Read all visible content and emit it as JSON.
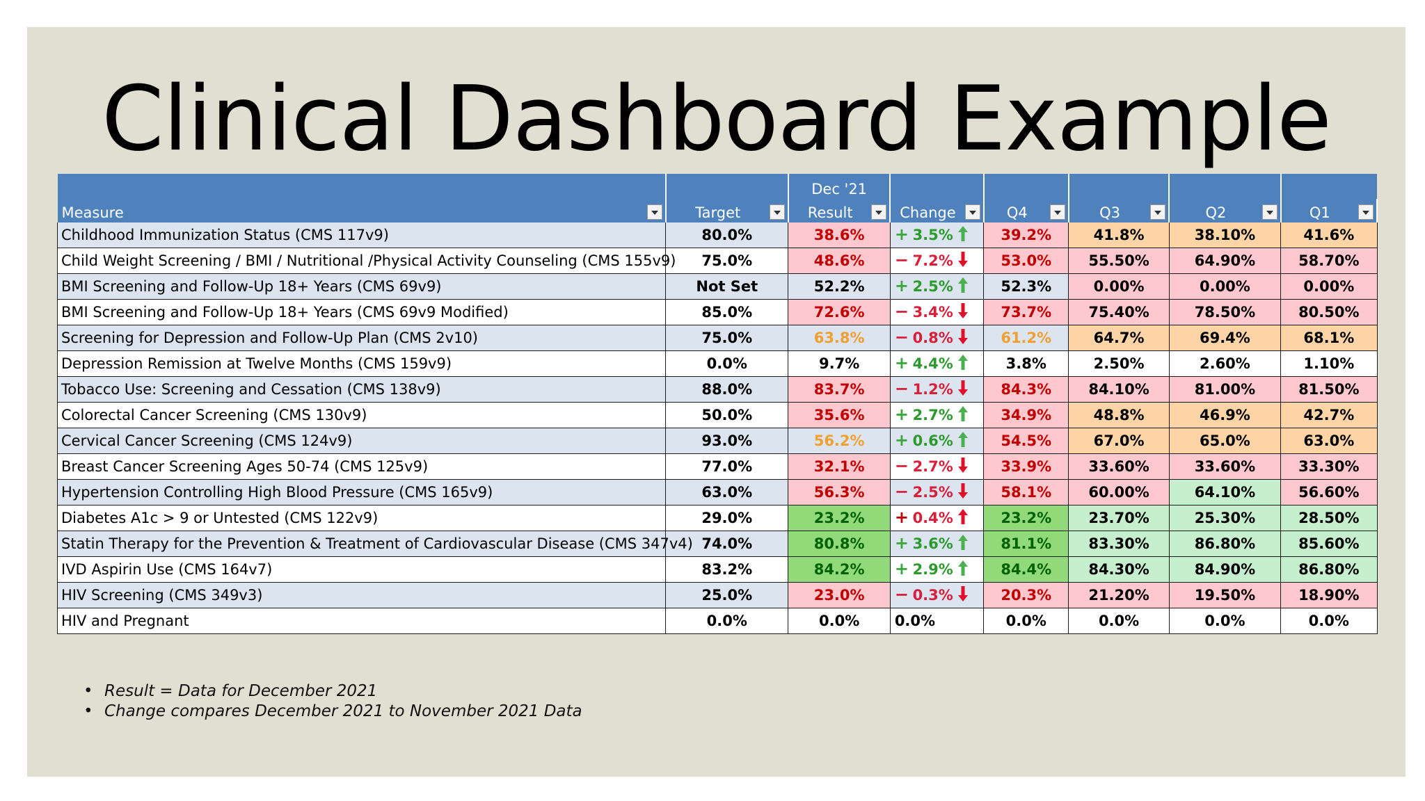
{
  "title": "Clinical Dashboard Example",
  "header": {
    "top_label": "Dec '21",
    "columns": [
      "Measure",
      "Target",
      "Result",
      "Change",
      "Q4",
      "Q3",
      "Q2",
      "Q1"
    ]
  },
  "rows": [
    {
      "measure": "Childhood Immunization Status (CMS 117v9)",
      "target": "80.0%",
      "result": "38.6%",
      "sign": "+",
      "change": "3.5%",
      "dir": "up",
      "q4": "39.2%",
      "q3": "41.8%",
      "q2": "38.10%",
      "q1": "41.6%"
    },
    {
      "measure": "Child Weight Screening / BMI / Nutritional /Physical Activity Counseling (CMS 155v9)",
      "target": "75.0%",
      "result": "48.6%",
      "sign": "−",
      "change": "7.2%",
      "dir": "down",
      "q4": "53.0%",
      "q3": "55.50%",
      "q2": "64.90%",
      "q1": "58.70%"
    },
    {
      "measure": "BMI Screening and Follow-Up 18+ Years (CMS 69v9)",
      "target": "Not Set",
      "result": "52.2%",
      "sign": "+",
      "change": "2.5%",
      "dir": "up",
      "q4": "52.3%",
      "q3": "0.00%",
      "q2": "0.00%",
      "q1": "0.00%"
    },
    {
      "measure": "BMI Screening and Follow-Up 18+ Years (CMS 69v9 Modified)",
      "target": "85.0%",
      "result": "72.6%",
      "sign": "−",
      "change": "3.4%",
      "dir": "down",
      "q4": "73.7%",
      "q3": "75.40%",
      "q2": "78.50%",
      "q1": "80.50%"
    },
    {
      "measure": "Screening for Depression and Follow-Up Plan (CMS 2v10)",
      "target": "75.0%",
      "result": "63.8%",
      "sign": "−",
      "change": "0.8%",
      "dir": "down",
      "q4": "61.2%",
      "q3": "64.7%",
      "q2": "69.4%",
      "q1": "68.1%"
    },
    {
      "measure": "Depression Remission at Twelve Months (CMS 159v9)",
      "target": "0.0%",
      "result": "9.7%",
      "sign": "+",
      "change": "4.4%",
      "dir": "up",
      "q4": "3.8%",
      "q3": "2.50%",
      "q2": "2.60%",
      "q1": "1.10%"
    },
    {
      "measure": "Tobacco Use: Screening and Cessation (CMS 138v9)",
      "target": "88.0%",
      "result": "83.7%",
      "sign": "−",
      "change": "1.2%",
      "dir": "down",
      "q4": "84.3%",
      "q3": "84.10%",
      "q2": "81.00%",
      "q1": "81.50%"
    },
    {
      "measure": "Colorectal Cancer Screening (CMS 130v9)",
      "target": "50.0%",
      "result": "35.6%",
      "sign": "+",
      "change": "2.7%",
      "dir": "up",
      "q4": "34.9%",
      "q3": "48.8%",
      "q2": "46.9%",
      "q1": "42.7%"
    },
    {
      "measure": "Cervical Cancer Screening (CMS 124v9)",
      "target": "93.0%",
      "result": "56.2%",
      "sign": "+",
      "change": "0.6%",
      "dir": "up",
      "q4": "54.5%",
      "q3": "67.0%",
      "q2": "65.0%",
      "q1": "63.0%"
    },
    {
      "measure": "Breast Cancer Screening Ages 50-74 (CMS 125v9)",
      "target": "77.0%",
      "result": "32.1%",
      "sign": "−",
      "change": "2.7%",
      "dir": "down",
      "q4": "33.9%",
      "q3": "33.60%",
      "q2": "33.60%",
      "q1": "33.30%"
    },
    {
      "measure": "Hypertension Controlling High Blood Pressure (CMS 165v9)",
      "target": "63.0%",
      "result": "56.3%",
      "sign": "−",
      "change": "2.5%",
      "dir": "down",
      "q4": "58.1%",
      "q3": "60.00%",
      "q2": "64.10%",
      "q1": "56.60%"
    },
    {
      "measure": "Diabetes A1c > 9 or Untested (CMS 122v9)",
      "target": "29.0%",
      "result": "23.2%",
      "sign": "+",
      "change": "0.4%",
      "dir": "up-red",
      "q4": "23.2%",
      "q3": "23.70%",
      "q2": "25.30%",
      "q1": "28.50%"
    },
    {
      "measure": "Statin Therapy for the Prevention & Treatment of Cardiovascular Disease (CMS 347v4)",
      "target": "74.0%",
      "result": "80.8%",
      "sign": "+",
      "change": "3.6%",
      "dir": "up",
      "q4": "81.1%",
      "q3": "83.30%",
      "q2": "86.80%",
      "q1": "85.60%"
    },
    {
      "measure": "IVD Aspirin Use (CMS 164v7)",
      "target": "83.2%",
      "result": "84.2%",
      "sign": "+",
      "change": "2.9%",
      "dir": "up",
      "q4": "84.4%",
      "q3": "84.30%",
      "q2": "84.90%",
      "q1": "86.80%"
    },
    {
      "measure": "HIV Screening (CMS 349v3)",
      "target": "25.0%",
      "result": "23.0%",
      "sign": "−",
      "change": "0.3%",
      "dir": "down",
      "q4": "20.3%",
      "q3": "21.20%",
      "q2": "19.50%",
      "q1": "18.90%"
    },
    {
      "measure": "HIV and Pregnant",
      "target": "0.0%",
      "result": "0.0%",
      "sign": "",
      "change": "0.0%",
      "dir": "none",
      "q4": "0.0%",
      "q3": "0.0%",
      "q2": "0.0%",
      "q1": "0.0%"
    }
  ],
  "cell_styles": [
    [
      "red",
      "red",
      "org",
      "org",
      "org"
    ],
    [
      "red",
      "red",
      "redb",
      "redb",
      "redb"
    ],
    [
      "blu",
      "blu",
      "redb",
      "redb",
      "redb"
    ],
    [
      "red",
      "red",
      "redb",
      "redb",
      "redb"
    ],
    [
      "orgt",
      "orgt",
      "org",
      "org",
      "org"
    ],
    [
      "wht",
      "wht",
      "wht",
      "wht",
      "wht"
    ],
    [
      "red",
      "red",
      "redb",
      "redb",
      "redb"
    ],
    [
      "red",
      "red",
      "org",
      "org",
      "org"
    ],
    [
      "orgt",
      "red",
      "org",
      "org",
      "org"
    ],
    [
      "red",
      "red",
      "redb",
      "redb",
      "redb"
    ],
    [
      "red",
      "red",
      "redb",
      "grnb",
      "redb"
    ],
    [
      "grnf",
      "grnf",
      "grnb",
      "grnb",
      "grnb"
    ],
    [
      "grnf",
      "grnf",
      "grnb",
      "grnb",
      "grnb"
    ],
    [
      "grnf",
      "grnf",
      "grnb",
      "grnb",
      "grnb"
    ],
    [
      "red",
      "red",
      "redb",
      "redb",
      "redb"
    ],
    [
      "wht",
      "wht",
      "wht",
      "wht",
      "wht"
    ]
  ],
  "notes": [
    "Result = Data for December 2021",
    "Change compares December 2021 to November 2021 Data"
  ]
}
